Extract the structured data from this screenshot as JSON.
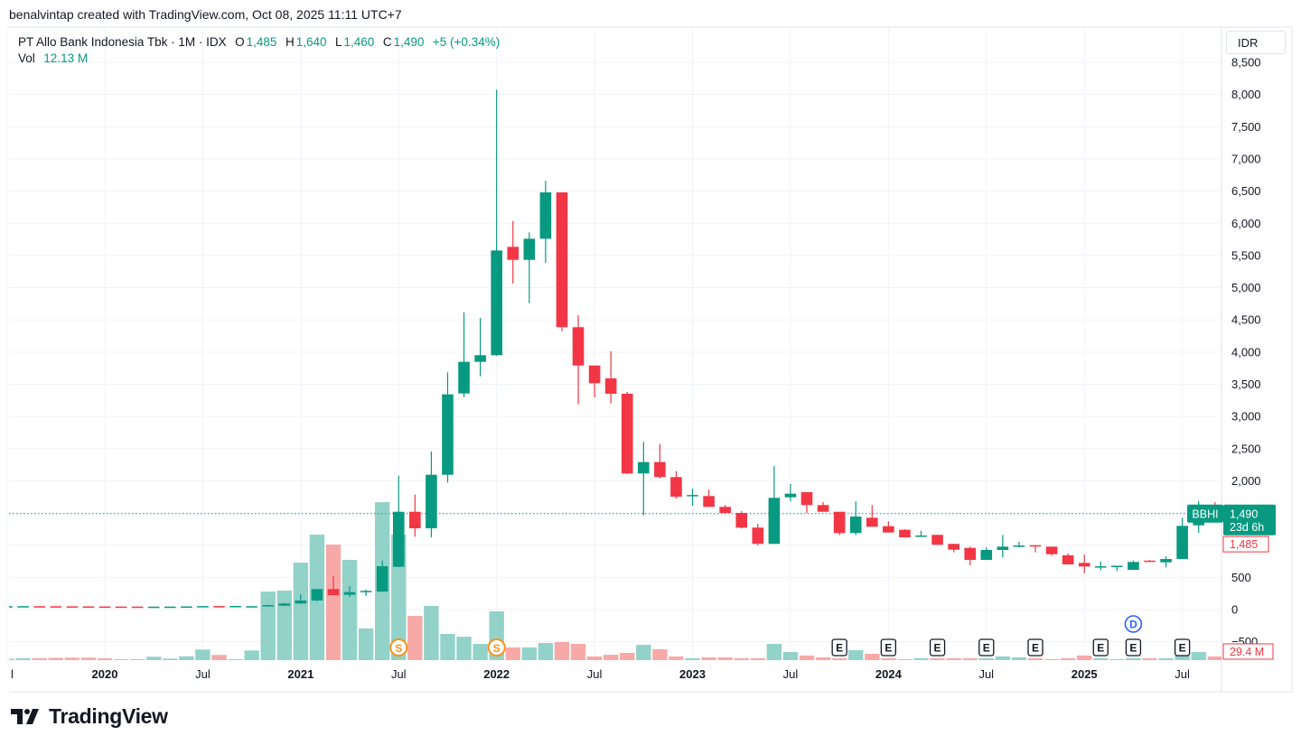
{
  "attribution": "benalvintap created with TradingView.com, Oct 08, 2025 11:11 UTC+7",
  "legend": {
    "title": "PT Allo Bank Indonesia Tbk · 1M · IDX",
    "o_label": "O",
    "o": "1,485",
    "h_label": "H",
    "h": "1,640",
    "l_label": "L",
    "l": "1,460",
    "c_label": "C",
    "c": "1,490",
    "change": "+5 (+0.34%)",
    "vol_label": "Vol",
    "vol": "12.13 M"
  },
  "currency": "IDR",
  "badges": {
    "symbol": "BBHI",
    "last_price": "1,490",
    "countdown": "23d 6h",
    "prev_close": "1,485",
    "volume": "29.4 M"
  },
  "price_axis_labels": [
    "8,500",
    "8,000",
    "7,500",
    "7,000",
    "6,500",
    "6,000",
    "5,500",
    "5,000",
    "4,500",
    "4,000",
    "3,500",
    "3,000",
    "2,500",
    "2,000",
    "500",
    "0",
    "−500"
  ],
  "time_axis_labels": [
    {
      "text": "l",
      "bold": false,
      "month": "2019-07"
    },
    {
      "text": "2020",
      "bold": true,
      "month": "2020-01"
    },
    {
      "text": "Jul",
      "bold": false,
      "month": "2020-07"
    },
    {
      "text": "2021",
      "bold": true,
      "month": "2021-01"
    },
    {
      "text": "Jul",
      "bold": false,
      "month": "2021-07"
    },
    {
      "text": "2022",
      "bold": true,
      "month": "2022-01"
    },
    {
      "text": "Jul",
      "bold": false,
      "month": "2022-07"
    },
    {
      "text": "2023",
      "bold": true,
      "month": "2023-01"
    },
    {
      "text": "Jul",
      "bold": false,
      "month": "2023-07"
    },
    {
      "text": "2024",
      "bold": true,
      "month": "2024-01"
    },
    {
      "text": "Jul",
      "bold": false,
      "month": "2024-07"
    },
    {
      "text": "2025",
      "bold": true,
      "month": "2025-01"
    },
    {
      "text": "Jul",
      "bold": false,
      "month": "2025-07"
    }
  ],
  "markers": [
    {
      "type": "S",
      "month": "2021-07",
      "color": "#f7931a"
    },
    {
      "type": "S",
      "month": "2022-01",
      "color": "#f7931a"
    },
    {
      "type": "E",
      "month": "2023-10",
      "color": "#131722"
    },
    {
      "type": "E",
      "month": "2024-01",
      "color": "#131722"
    },
    {
      "type": "E",
      "month": "2024-04",
      "color": "#131722"
    },
    {
      "type": "E",
      "month": "2024-07",
      "color": "#131722"
    },
    {
      "type": "E",
      "month": "2024-10",
      "color": "#131722"
    },
    {
      "type": "E",
      "month": "2025-02",
      "color": "#131722"
    },
    {
      "type": "E",
      "month": "2025-04",
      "color": "#131722"
    },
    {
      "type": "E",
      "month": "2025-07",
      "color": "#131722"
    },
    {
      "type": "D",
      "month": "2025-04",
      "color": "#2962ff"
    }
  ],
  "colors": {
    "up": "#089981",
    "down": "#f23645",
    "vol_up": "#92d2c9",
    "vol_down": "#f7a9a7",
    "grid": "#f0f3fa"
  },
  "logo_text": "TradingView",
  "chart_data": {
    "type": "candlestick",
    "title": "PT Allo Bank Indonesia Tbk · 1M · IDX",
    "symbol": "BBHI",
    "ylabel": "IDR",
    "ylim": [
      -500,
      8500
    ],
    "grid": true,
    "columns": [
      "month",
      "open",
      "high",
      "low",
      "close",
      "volume_M"
    ],
    "rows": [
      [
        "2019-07",
        50,
        52,
        49,
        52,
        9
      ],
      [
        "2019-08",
        52,
        53,
        51,
        52.5,
        12
      ],
      [
        "2019-09",
        52,
        52,
        50,
        51,
        12
      ],
      [
        "2019-10",
        51,
        51,
        49,
        50,
        15
      ],
      [
        "2019-11",
        50,
        50,
        48,
        49,
        16
      ],
      [
        "2019-12",
        49,
        49,
        47,
        48,
        16
      ],
      [
        "2020-01",
        48,
        48,
        46,
        47,
        12
      ],
      [
        "2020-02",
        47,
        47,
        45,
        46,
        6
      ],
      [
        "2020-03",
        46,
        46,
        40,
        43,
        6
      ],
      [
        "2020-04",
        43,
        46,
        42,
        45,
        22
      ],
      [
        "2020-05",
        45,
        47,
        44,
        46,
        10
      ],
      [
        "2020-06",
        46,
        50,
        45,
        49,
        25
      ],
      [
        "2020-07",
        49,
        56,
        48,
        54,
        69
      ],
      [
        "2020-08",
        54,
        55,
        50,
        52,
        34
      ],
      [
        "2020-09",
        52,
        58,
        51,
        56,
        6
      ],
      [
        "2020-10",
        50,
        55,
        48,
        52,
        63
      ],
      [
        "2020-11",
        55,
        75,
        54,
        68,
        448
      ],
      [
        "2020-12",
        60,
        105,
        55,
        94,
        454
      ],
      [
        "2021-01",
        94,
        238,
        84,
        140,
        637
      ],
      [
        "2021-02",
        140,
        320,
        130,
        318,
        820
      ],
      [
        "2021-03",
        318,
        523,
        220,
        224,
        755
      ],
      [
        "2021-04",
        229,
        365,
        196,
        271,
        655
      ],
      [
        "2021-05",
        280,
        308,
        210,
        290,
        207
      ],
      [
        "2021-06",
        280,
        761,
        270,
        673,
        1032
      ],
      [
        "2021-07",
        664,
        2080,
        660,
        1519,
        820
      ],
      [
        "2021-08",
        1519,
        1786,
        1132,
        1262,
        289
      ],
      [
        "2021-09",
        1262,
        2455,
        1122,
        2094,
        354
      ],
      [
        "2021-10",
        2094,
        3685,
        1973,
        3343,
        171
      ],
      [
        "2021-11",
        3357,
        4615,
        3296,
        3848,
        153
      ],
      [
        "2021-12",
        3848,
        4530,
        3623,
        3951,
        106
      ],
      [
        "2022-01",
        3951,
        8075,
        3940,
        5578,
        319
      ],
      [
        "2022-02",
        5634,
        6036,
        5063,
        5432,
        83
      ],
      [
        "2022-03",
        5432,
        5859,
        4759,
        5760,
        83
      ],
      [
        "2022-04",
        5760,
        6658,
        5386,
        6480,
        112
      ],
      [
        "2022-05",
        6480,
        6480,
        4324,
        4386,
        118
      ],
      [
        "2022-06",
        4386,
        4572,
        3188,
        3791,
        106
      ],
      [
        "2022-07",
        3791,
        3791,
        3296,
        3516,
        24
      ],
      [
        "2022-08",
        3591,
        4011,
        3202,
        3352,
        35
      ],
      [
        "2022-09",
        3352,
        3380,
        2104,
        2114,
        47
      ],
      [
        "2022-10",
        2114,
        2605,
        1463,
        2291,
        100
      ],
      [
        "2022-11",
        2291,
        2571,
        2034,
        2058,
        71
      ],
      [
        "2022-12",
        2058,
        2150,
        1721,
        1753,
        24
      ],
      [
        "2023-01",
        1770,
        1880,
        1613,
        1780,
        12
      ],
      [
        "2023-02",
        1763,
        1861,
        1595,
        1595,
        18
      ],
      [
        "2023-03",
        1595,
        1627,
        1501,
        1501,
        18
      ],
      [
        "2023-04",
        1501,
        1529,
        1258,
        1272,
        12
      ],
      [
        "2023-05",
        1272,
        1333,
        996,
        1020,
        12
      ],
      [
        "2023-06",
        1020,
        2230,
        1020,
        1735,
        106
      ],
      [
        "2023-07",
        1744,
        1950,
        1679,
        1800,
        53
      ],
      [
        "2023-08",
        1823,
        1823,
        1496,
        1623,
        30
      ],
      [
        "2023-09",
        1623,
        1669,
        1519,
        1519,
        18
      ],
      [
        "2023-10",
        1519,
        1519,
        1155,
        1188,
        12
      ],
      [
        "2023-11",
        1188,
        1679,
        1155,
        1445,
        65
      ],
      [
        "2023-12",
        1426,
        1623,
        1286,
        1286,
        41
      ],
      [
        "2024-01",
        1295,
        1370,
        1197,
        1197,
        12
      ],
      [
        "2024-02",
        1239,
        1250,
        1122,
        1122,
        6
      ],
      [
        "2024-03",
        1140,
        1225,
        1130,
        1150,
        12
      ],
      [
        "2024-04",
        1160,
        1160,
        1006,
        1006,
        12
      ],
      [
        "2024-05",
        1020,
        1020,
        888,
        930,
        12
      ],
      [
        "2024-06",
        958,
        977,
        687,
        771,
        12
      ],
      [
        "2024-07",
        771,
        968,
        771,
        926,
        12
      ],
      [
        "2024-08",
        926,
        1160,
        809,
        977,
        24
      ],
      [
        "2024-09",
        985,
        1052,
        964,
        995,
        18
      ],
      [
        "2024-10",
        1000,
        1000,
        888,
        980,
        12
      ],
      [
        "2024-11",
        977,
        977,
        837,
        860,
        6
      ],
      [
        "2024-12",
        842,
        874,
        701,
        701,
        12
      ],
      [
        "2025-01",
        725,
        856,
        561,
        669,
        30
      ],
      [
        "2025-02",
        665,
        748,
        608,
        672,
        12
      ],
      [
        "2025-03",
        674,
        682,
        598,
        680,
        6
      ],
      [
        "2025-04",
        617,
        762,
        617,
        739,
        12
      ],
      [
        "2025-05",
        760,
        770,
        745,
        755,
        12
      ],
      [
        "2025-06",
        734,
        828,
        655,
        785,
        12
      ],
      [
        "2025-07",
        785,
        1426,
        785,
        1300,
        30
      ],
      [
        "2025-08",
        1309,
        1683,
        1192,
        1500,
        53
      ],
      [
        "2025-09",
        1500,
        1669,
        1460,
        1485,
        24
      ],
      [
        "2025-10",
        1485,
        1640,
        1460,
        1490,
        12.13
      ]
    ],
    "last_price_line": 1490,
    "previous_close": 1485
  }
}
